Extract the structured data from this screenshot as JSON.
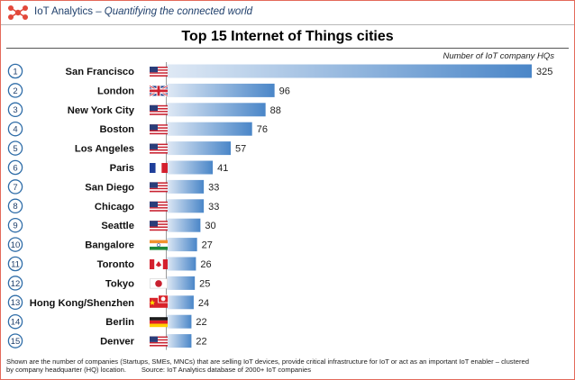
{
  "header": {
    "brand": "IoT Analytics",
    "tagline": " – Quantifying the connected world",
    "logo_icon": "iot-analytics-logo-icon"
  },
  "chart_data": {
    "type": "bar",
    "orientation": "horizontal",
    "title": "Top 15 Internet of Things cities",
    "value_label": "Number of IoT company HQs",
    "xlim": [
      0,
      325
    ],
    "colors": {
      "bar_dark": "#4a86c8",
      "bar_light": "#dfe9f5",
      "rank_circle": "#2f6da8"
    },
    "categories": [
      "San Francisco",
      "London",
      "New York City",
      "Boston",
      "Los Angeles",
      "Paris",
      "San Diego",
      "Chicago",
      "Seattle",
      "Bangalore",
      "Toronto",
      "Tokyo",
      "Hong Kong/Shenzhen",
      "Berlin",
      "Denver"
    ],
    "ranks": [
      "1",
      "2",
      "3",
      "4",
      "5",
      "6",
      "7",
      "8",
      "9",
      "10",
      "11",
      "12",
      "13",
      "14",
      "15"
    ],
    "flags": [
      "us",
      "uk",
      "us",
      "us",
      "us",
      "fr",
      "us",
      "us",
      "us",
      "in",
      "ca",
      "jp",
      "cn-hk",
      "de",
      "us"
    ],
    "values": [
      325,
      96,
      88,
      76,
      57,
      41,
      33,
      33,
      30,
      27,
      26,
      25,
      24,
      22,
      22
    ]
  },
  "footnote": {
    "line1": "Shown are the number of companies (Startups, SMEs, MNCs) that are selling IoT devices, provide critical infrastructure for IoT or act as an important IoT enabler – clustered",
    "line2": "by company headquarter (HQ) location.",
    "source": "Source: IoT Analytics database of 2000+ IoT companies"
  }
}
